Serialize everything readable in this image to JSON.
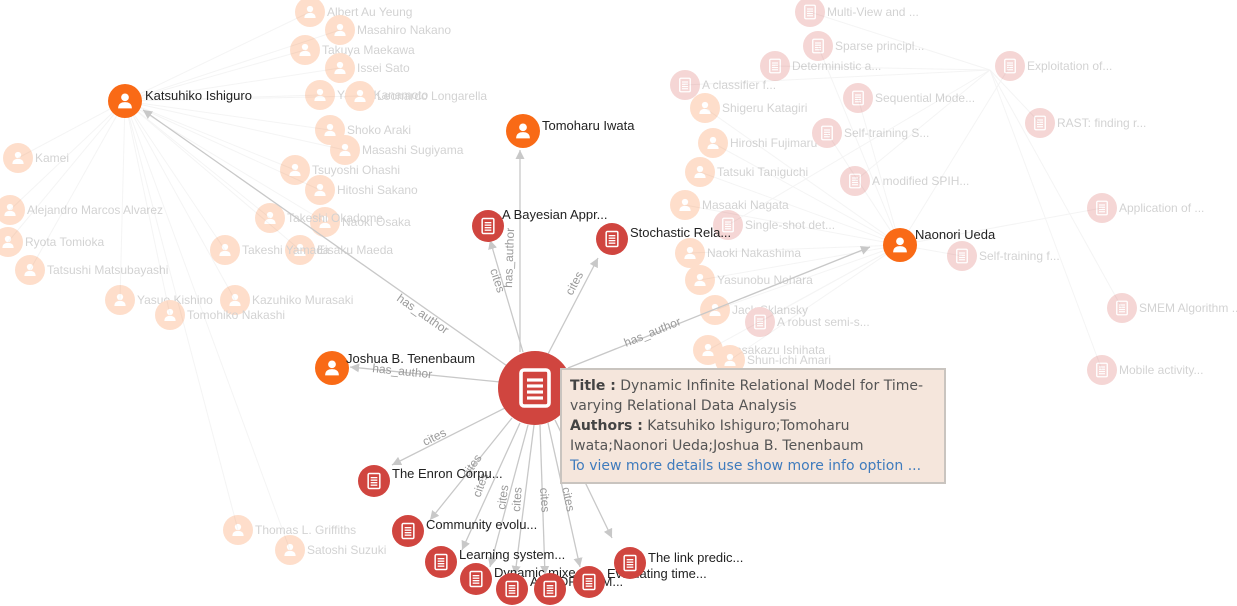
{
  "tooltip": {
    "title_label": "Title :",
    "title": "Dynamic Infinite Relational Model for Time-varying Relational Data Analysis",
    "authors_label": "Authors :",
    "authors": "Katsuhiko Ishiguro;Tomoharu Iwata;Naonori Ueda;Joshua B. Tenenbaum",
    "more_link": "To view more details use show more info option ..."
  },
  "colors": {
    "paper": "#d0453f",
    "author": "#f96a16",
    "edge": "#c8c8c8",
    "tooltip_bg": "#f5e6dc",
    "link": "#3f7bbd"
  },
  "graph": {
    "focus_paper": "Dynamic Infinite Relational Model for Time-varying Relational Data Analysis",
    "authors": [
      {
        "label": "Katsuhiko Ishiguro",
        "icon": "person-icon"
      },
      {
        "label": "Tomoharu Iwata",
        "icon": "person-icon"
      },
      {
        "label": "Naonori Ueda",
        "icon": "person-icon"
      },
      {
        "label": "Joshua B. Tenenbaum",
        "icon": "person-icon"
      }
    ],
    "papers": [
      {
        "label": "A Bayesian Appr...",
        "icon": "document-icon"
      },
      {
        "label": "Stochastic Rela...",
        "icon": "document-icon"
      },
      {
        "label": "The Enron Corpu...",
        "icon": "document-icon"
      },
      {
        "label": "Community evolu...",
        "icon": "document-icon"
      },
      {
        "label": "Learning system...",
        "icon": "document-icon"
      },
      {
        "label": "Dynamic mixe...",
        "icon": "document-icon"
      },
      {
        "label": "An HDP-HMM...",
        "icon": "document-icon"
      },
      {
        "label": "Evaluating time...",
        "icon": "document-icon"
      },
      {
        "label": "The link predic...",
        "icon": "document-icon"
      }
    ],
    "edge_labels": {
      "has_author": "has_author",
      "cites": "cites"
    },
    "background_authors": [
      "Albert Au Yeung",
      "Masahiro Nakano",
      "Takuya Maekawa",
      "Issei Sato",
      "Yasuo Kanamoto",
      "Leonardo Longarella",
      "Shoko Araki",
      "Masashi Sugiyama",
      "Tsuyoshi Ohashi",
      "Hitoshi Sakano",
      "Naoki Osaka",
      "Takeshi Okadome",
      "Eisaku Maeda",
      "Takeshi Yamada",
      "Kazuhiko Murasaki",
      "Kamei",
      "Alejandro Marcos Alvarez",
      "Ryota Tomioka",
      "Tatsushi Matsubayashi",
      "Yasuo Kishino",
      "Tomohiko Nakashi",
      "Thomas L. Griffiths",
      "Satoshi Suzuki",
      "Shigeru Katagiri",
      "Hiroshi Fujimaru",
      "Tatsuki Taniguchi",
      "Masaaki Nagata",
      "Naoki Nakashima",
      "Yasunobu Nohara",
      "Jack Sklansky",
      "Masakazu Ishihata",
      "Shun-ichi Amari"
    ],
    "background_papers": [
      "Multi-View and ...",
      "Sparse principl...",
      "Deterministic a...",
      "Exploitation of...",
      "A classifier f...",
      "Sequential Mode...",
      "RAST: finding r...",
      "Self-training S...",
      "A modified SPIH...",
      "Application of ...",
      "Single-shot det...",
      "Self-training f...",
      "SMEM Algorithm ...",
      "A robust semi-s...",
      "Mobile activity..."
    ]
  }
}
